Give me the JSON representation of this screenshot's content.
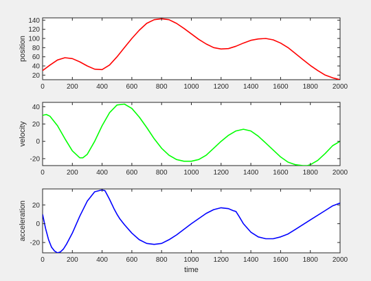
{
  "figure": {
    "background": "#f0f0f0",
    "axes_background": "#ffffff",
    "axes_color": "#262626"
  },
  "chart_data": [
    {
      "type": "line",
      "name": "position-plot",
      "title": "",
      "xlabel": "",
      "ylabel": "position",
      "xlim": [
        0,
        2000
      ],
      "ylim": [
        10,
        145
      ],
      "xticks": [
        0,
        200,
        400,
        600,
        800,
        1000,
        1200,
        1400,
        1600,
        1800,
        2000
      ],
      "yticks": [
        20,
        40,
        60,
        80,
        100,
        120,
        140
      ],
      "grid": false,
      "series": [
        {
          "color": "#ff0000",
          "x": [
            0,
            50,
            100,
            150,
            200,
            250,
            300,
            350,
            400,
            450,
            500,
            550,
            600,
            650,
            700,
            750,
            800,
            850,
            900,
            950,
            1000,
            1050,
            1100,
            1150,
            1200,
            1250,
            1300,
            1350,
            1400,
            1450,
            1500,
            1550,
            1600,
            1650,
            1700,
            1750,
            1800,
            1850,
            1900,
            1950,
            2000
          ],
          "y": [
            30,
            42,
            53,
            58,
            56,
            49,
            40,
            33,
            32,
            42,
            60,
            80,
            100,
            118,
            133,
            141,
            143,
            141,
            133,
            122,
            110,
            98,
            88,
            80,
            77,
            78,
            83,
            90,
            96,
            99,
            100,
            97,
            90,
            80,
            67,
            54,
            41,
            30,
            20,
            14,
            10
          ]
        }
      ]
    },
    {
      "type": "line",
      "name": "velocity-plot",
      "title": "",
      "xlabel": "",
      "ylabel": "velocity",
      "xlim": [
        0,
        2000
      ],
      "ylim": [
        -28,
        45
      ],
      "xticks": [
        0,
        200,
        400,
        600,
        800,
        1000,
        1200,
        1400,
        1600,
        1800,
        2000
      ],
      "yticks": [
        -20,
        0,
        20,
        40
      ],
      "grid": false,
      "series": [
        {
          "color": "#00ff00",
          "x": [
            0,
            25,
            50,
            100,
            150,
            200,
            250,
            270,
            300,
            350,
            400,
            450,
            500,
            550,
            600,
            650,
            700,
            750,
            800,
            850,
            900,
            950,
            1000,
            1050,
            1100,
            1150,
            1200,
            1250,
            1300,
            1350,
            1400,
            1450,
            1500,
            1550,
            1600,
            1650,
            1700,
            1750,
            1780,
            1800,
            1850,
            1900,
            1950,
            2000
          ],
          "y": [
            30,
            31,
            29,
            18,
            3,
            -11,
            -19,
            -19,
            -15,
            0,
            18,
            33,
            42,
            43,
            38,
            28,
            16,
            3,
            -8,
            -16,
            -21,
            -23,
            -23,
            -21,
            -16,
            -8,
            0,
            7,
            12,
            14,
            12,
            6,
            -2,
            -10,
            -18,
            -24,
            -27,
            -28,
            -28,
            -27,
            -22,
            -14,
            -5,
            0
          ]
        }
      ]
    },
    {
      "type": "line",
      "name": "acceleration-plot",
      "title": "",
      "xlabel": "time",
      "ylabel": "acceleration",
      "xlim": [
        0,
        2000
      ],
      "ylim": [
        -31,
        37
      ],
      "xticks": [
        0,
        200,
        400,
        600,
        800,
        1000,
        1200,
        1400,
        1600,
        1800,
        2000
      ],
      "yticks": [
        -20,
        0,
        20
      ],
      "grid": false,
      "series": [
        {
          "color": "#0000ff",
          "x": [
            0,
            20,
            40,
            60,
            80,
            100,
            120,
            140,
            160,
            200,
            250,
            300,
            350,
            400,
            420,
            450,
            480,
            500,
            520,
            550,
            600,
            650,
            700,
            750,
            800,
            850,
            900,
            1000,
            1100,
            1150,
            1200,
            1250,
            1280,
            1300,
            1320,
            1350,
            1400,
            1450,
            1500,
            1550,
            1600,
            1650,
            1700,
            1800,
            1900,
            1950,
            2000
          ],
          "y": [
            10,
            -5,
            -17,
            -25,
            -29,
            -31,
            -30,
            -27,
            -22,
            -10,
            8,
            24,
            34,
            36,
            35,
            26,
            16,
            10,
            5,
            -1,
            -10,
            -17,
            -21,
            -22,
            -21,
            -17,
            -12,
            0,
            11,
            15,
            17,
            16,
            14,
            13,
            8,
            0,
            -9,
            -14,
            -16,
            -16,
            -14,
            -11,
            -6,
            4,
            14,
            19,
            22
          ]
        }
      ]
    }
  ]
}
